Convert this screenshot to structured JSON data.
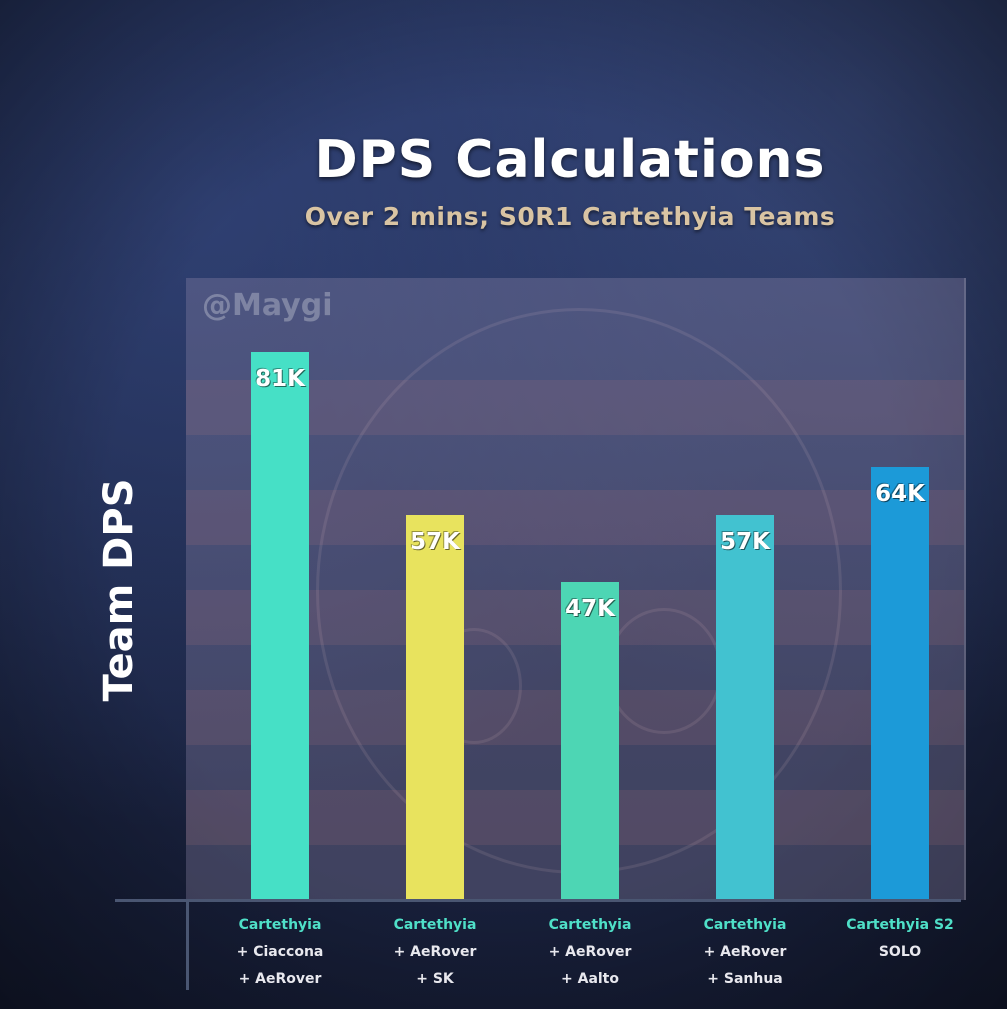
{
  "chart_data": {
    "type": "bar",
    "title": "DPS Calculations",
    "subtitle": "Over 2 mins; S0R1 Cartethyia Teams",
    "watermark": "@Maygi",
    "ylabel": "Team DPS",
    "xlabel": "",
    "ylim": [
      0,
      92
    ],
    "grid": false,
    "categories": [
      [
        "Cartethyia",
        "+ Ciaccona",
        "+ AeRover"
      ],
      [
        "Cartethyia",
        "+ AeRover",
        "+ SK"
      ],
      [
        "Cartethyia",
        "+ AeRover",
        "+ Aalto"
      ],
      [
        "Cartethyia",
        "+ AeRover",
        "+ Sanhua"
      ],
      [
        "Cartethyia S2",
        "SOLO",
        ""
      ]
    ],
    "values": [
      81,
      57,
      47,
      57,
      64
    ],
    "value_labels": [
      "81K",
      "57K",
      "47K",
      "57K",
      "64K"
    ],
    "colors": [
      "#46e0c6",
      "#e8e35e",
      "#4dd6b4",
      "#42c2d0",
      "#1c9ad8"
    ]
  }
}
